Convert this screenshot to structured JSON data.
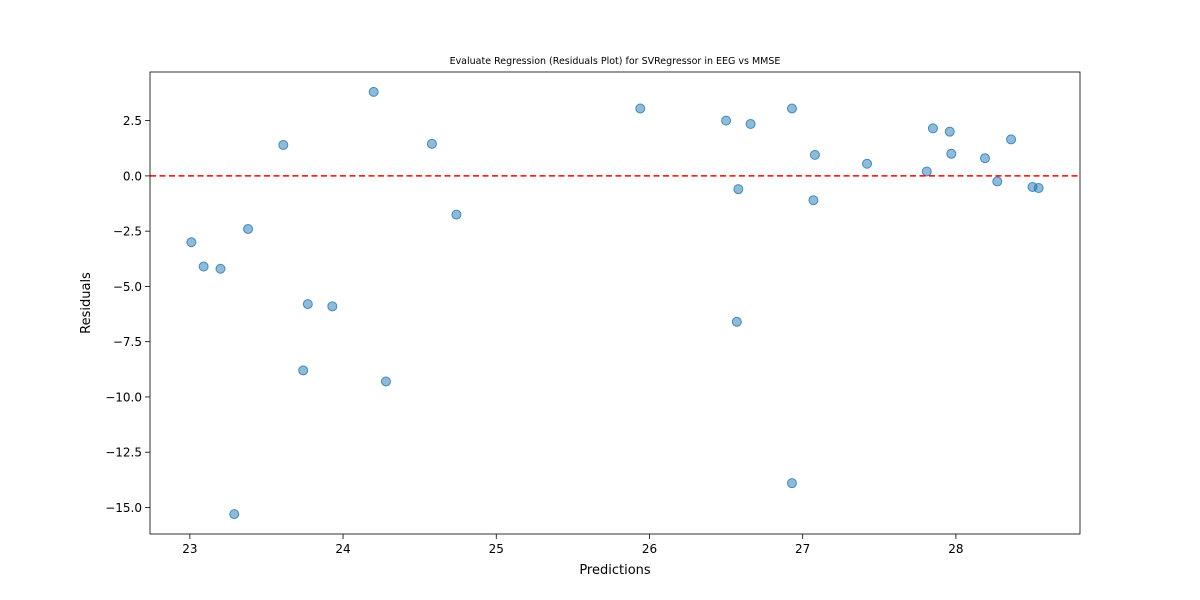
{
  "chart_data": {
    "type": "scatter",
    "title": "Evaluate Regression (Residuals Plot) for SVRegressor in EEG vs MMSE",
    "xlabel": "Predictions",
    "ylabel": "Residuals",
    "xlim": [
      22.74,
      28.81
    ],
    "ylim": [
      -16.2,
      4.7
    ],
    "grid": false,
    "x_ticks": [
      23,
      24,
      25,
      26,
      27,
      28
    ],
    "x_tick_labels": [
      "23",
      "24",
      "25",
      "26",
      "27",
      "28"
    ],
    "y_ticks": [
      2.5,
      0.0,
      -2.5,
      -5.0,
      -7.5,
      -10.0,
      -12.5,
      -15.0
    ],
    "y_tick_labels": [
      "2.5",
      "0.0",
      "−2.5",
      "−5.0",
      "−7.5",
      "−10.0",
      "−12.5",
      "−15.0"
    ],
    "reference_line": {
      "y": 0,
      "color": "#ff0000",
      "style": "dashed"
    },
    "point_color": "#1f77b4",
    "point_alpha": 0.5,
    "points": [
      {
        "x": 23.01,
        "y": -3.0
      },
      {
        "x": 23.09,
        "y": -4.1
      },
      {
        "x": 23.2,
        "y": -4.2
      },
      {
        "x": 23.29,
        "y": -15.3
      },
      {
        "x": 23.38,
        "y": -2.4
      },
      {
        "x": 23.61,
        "y": 1.4
      },
      {
        "x": 23.74,
        "y": -8.8
      },
      {
        "x": 23.77,
        "y": -5.8
      },
      {
        "x": 23.93,
        "y": -5.9
      },
      {
        "x": 24.2,
        "y": 3.8
      },
      {
        "x": 24.28,
        "y": -9.3
      },
      {
        "x": 24.58,
        "y": 1.45
      },
      {
        "x": 24.74,
        "y": -1.75
      },
      {
        "x": 25.94,
        "y": 3.05
      },
      {
        "x": 26.5,
        "y": 2.5
      },
      {
        "x": 26.57,
        "y": -6.6
      },
      {
        "x": 26.58,
        "y": -0.6
      },
      {
        "x": 26.66,
        "y": 2.35
      },
      {
        "x": 26.93,
        "y": 3.05
      },
      {
        "x": 26.93,
        "y": -13.9
      },
      {
        "x": 27.07,
        "y": -1.1
      },
      {
        "x": 27.08,
        "y": 0.95
      },
      {
        "x": 27.42,
        "y": 0.55
      },
      {
        "x": 27.81,
        "y": 0.2
      },
      {
        "x": 27.85,
        "y": 2.15
      },
      {
        "x": 27.96,
        "y": 2.0
      },
      {
        "x": 27.97,
        "y": 1.0
      },
      {
        "x": 28.19,
        "y": 0.8
      },
      {
        "x": 28.27,
        "y": -0.25
      },
      {
        "x": 28.36,
        "y": 1.65
      },
      {
        "x": 28.5,
        "y": -0.5
      },
      {
        "x": 28.54,
        "y": -0.55
      }
    ]
  }
}
